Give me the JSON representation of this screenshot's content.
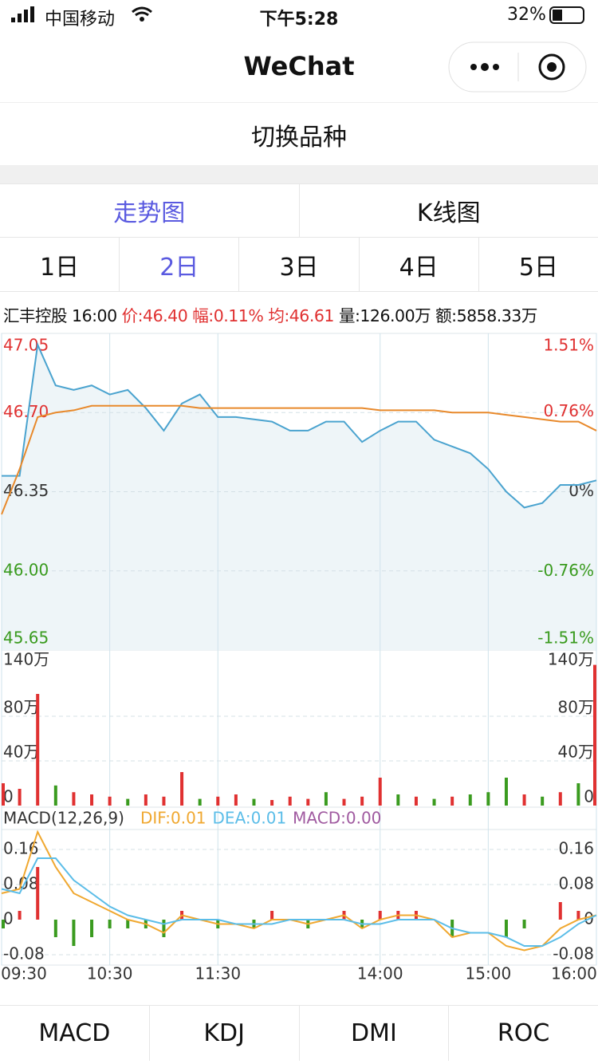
{
  "status_bar": {
    "carrier": "中国移动",
    "time": "下午5:28",
    "battery": "32%"
  },
  "nav": {
    "title": "WeChat"
  },
  "switch_button": "切换品种",
  "chart_tabs": [
    "走势图",
    "K线图"
  ],
  "day_tabs": [
    "1日",
    "2日",
    "3日",
    "4日",
    "5日"
  ],
  "quote": {
    "name": "汇丰控股",
    "time": "16:00",
    "price": "价:46.40",
    "change": "幅:0.11%",
    "average": "均:46.61",
    "volume": "量:126.00万",
    "amount": "额:5858.33万"
  },
  "chart_data": [
    {
      "type": "line",
      "x": [
        0,
        10,
        20,
        30,
        40,
        50,
        60,
        70,
        80,
        90,
        100,
        110,
        120,
        130,
        140,
        150,
        160,
        170,
        180,
        190,
        200,
        210,
        220,
        230,
        240,
        250,
        260,
        270,
        280,
        290,
        300,
        310,
        320,
        330
      ],
      "xlim": [
        0,
        330
      ],
      "xticks": [
        {
          "value": 0,
          "label": "09:30"
        },
        {
          "value": 60,
          "label": "10:30"
        },
        {
          "value": 120,
          "label": "11:30"
        },
        {
          "value": 210,
          "label": "14:00"
        },
        {
          "value": 270,
          "label": "15:00"
        },
        {
          "value": 330,
          "label": "16:00"
        }
      ],
      "ylim": [
        45.65,
        47.05
      ],
      "yticks": [
        47.05,
        {
          "value": 46.7,
          "label": "46.70"
        },
        46.35,
        {
          "value": 46,
          "label": "46.00"
        },
        45.65
      ],
      "y2lim": [
        -1.51,
        1.51
      ],
      "y2ticks": [
        {
          "value": 1.51,
          "label": "1.51%"
        },
        {
          "value": 0.76,
          "label": "0.76%"
        },
        {
          "value": 0,
          "label": "0%"
        },
        {
          "value": -0.76,
          "label": "-0.76%"
        },
        {
          "value": -1.51,
          "label": "-1.51%"
        }
      ],
      "up_color": "#e03131",
      "down_color": "#3a9b1f",
      "area_color": "#eef5f8",
      "series": [
        {
          "color": "#4aa3cf",
          "values": [
            46.42,
            46.42,
            47.0,
            46.82,
            46.8,
            46.82,
            46.78,
            46.8,
            46.72,
            46.62,
            46.74,
            46.78,
            46.68,
            46.68,
            46.67,
            46.66,
            46.62,
            46.62,
            46.66,
            46.66,
            46.57,
            46.62,
            46.66,
            46.66,
            46.58,
            46.55,
            46.52,
            46.45,
            46.35,
            46.28,
            46.3,
            46.38,
            46.38,
            46.4
          ]
        },
        {
          "color": "#e8892b",
          "values": [
            46.25,
            46.45,
            46.68,
            46.7,
            46.71,
            46.73,
            46.73,
            46.73,
            46.73,
            46.73,
            46.73,
            46.72,
            46.72,
            46.72,
            46.72,
            46.72,
            46.72,
            46.72,
            46.72,
            46.72,
            46.72,
            46.71,
            46.71,
            46.71,
            46.71,
            46.7,
            46.7,
            46.7,
            46.69,
            46.68,
            46.67,
            46.66,
            46.66,
            46.62
          ]
        }
      ]
    },
    {
      "type": "bar",
      "x": [
        0,
        10,
        20,
        30,
        40,
        50,
        60,
        70,
        80,
        90,
        100,
        110,
        120,
        130,
        140,
        150,
        160,
        170,
        180,
        190,
        200,
        210,
        220,
        230,
        240,
        250,
        260,
        270,
        280,
        290,
        300,
        310,
        320,
        330
      ],
      "xlim": [
        0,
        330
      ],
      "ylim": [
        0,
        140
      ],
      "yticks": [
        {
          "value": 140,
          "label": "140万"
        },
        {
          "value": 80,
          "label": "80万"
        },
        {
          "value": 40,
          "label": "40万"
        },
        0
      ],
      "values": [
        20,
        15,
        100,
        18,
        12,
        10,
        8,
        6,
        10,
        8,
        30,
        6,
        8,
        10,
        6,
        5,
        8,
        6,
        12,
        6,
        8,
        25,
        10,
        8,
        6,
        8,
        10,
        12,
        25,
        10,
        8,
        12,
        20,
        126
      ],
      "colors": [
        "#e03131",
        "#e03131",
        "#e03131",
        "#3a9b1f",
        "#e03131",
        "#e03131",
        "#e03131",
        "#3a9b1f",
        "#e03131",
        "#e03131",
        "#e03131",
        "#3a9b1f",
        "#e03131",
        "#e03131",
        "#3a9b1f",
        "#e03131",
        "#e03131",
        "#e03131",
        "#3a9b1f",
        "#e03131",
        "#e03131",
        "#e03131",
        "#3a9b1f",
        "#e03131",
        "#3a9b1f",
        "#e03131",
        "#3a9b1f",
        "#3a9b1f",
        "#3a9b1f",
        "#e03131",
        "#3a9b1f",
        "#e03131",
        "#3a9b1f",
        "#e03131"
      ]
    },
    {
      "type": "macd",
      "title": "MACD(12,26,9)",
      "x": [
        0,
        10,
        20,
        30,
        40,
        50,
        60,
        70,
        80,
        90,
        100,
        110,
        120,
        130,
        140,
        150,
        160,
        170,
        180,
        190,
        200,
        210,
        220,
        230,
        240,
        250,
        260,
        270,
        280,
        290,
        300,
        310,
        320,
        330
      ],
      "xlim": [
        0,
        330
      ],
      "ylim": [
        -0.1,
        0.2
      ],
      "yticks": [
        0.16,
        0.08,
        0,
        -0.08
      ],
      "up_color": "#e03131",
      "down_color": "#3a9b1f",
      "series": [
        {
          "name": "DIF:0.01",
          "color": "#f0a830",
          "values": [
            0.06,
            0.07,
            0.2,
            0.12,
            0.06,
            0.04,
            0.02,
            0,
            -0.01,
            -0.03,
            0.01,
            0,
            -0.01,
            -0.01,
            -0.02,
            0,
            0,
            -0.01,
            0,
            0.01,
            -0.02,
            0,
            0.01,
            0.01,
            0,
            -0.04,
            -0.03,
            -0.03,
            -0.06,
            -0.07,
            -0.06,
            -0.02,
            0,
            0.01
          ]
        },
        {
          "name": "DEA:0.01",
          "color": "#5bbde8",
          "values": [
            0.07,
            0.06,
            0.14,
            0.14,
            0.09,
            0.06,
            0.03,
            0.01,
            0,
            -0.01,
            0,
            0,
            0,
            -0.01,
            -0.01,
            -0.01,
            0,
            0,
            0,
            0,
            -0.01,
            -0.01,
            0,
            0,
            0,
            -0.02,
            -0.03,
            -0.03,
            -0.04,
            -0.06,
            -0.06,
            -0.04,
            -0.01,
            0.01
          ]
        },
        {
          "name": "MACD:0.00",
          "color": "#a05aa0",
          "values": [
            -0.02,
            0.02,
            0.12,
            -0.04,
            -0.06,
            -0.04,
            -0.02,
            -0.02,
            -0.02,
            -0.04,
            0.02,
            0,
            -0.02,
            0,
            -0.02,
            0.02,
            0,
            -0.02,
            0,
            0.02,
            -0.02,
            0.02,
            0.02,
            0.02,
            0,
            -0.04,
            0,
            0,
            -0.04,
            -0.02,
            0,
            0.04,
            0.02,
            0
          ]
        }
      ]
    }
  ],
  "indicator_tabs": [
    "MACD",
    "KDJ",
    "DMI",
    "ROC"
  ]
}
